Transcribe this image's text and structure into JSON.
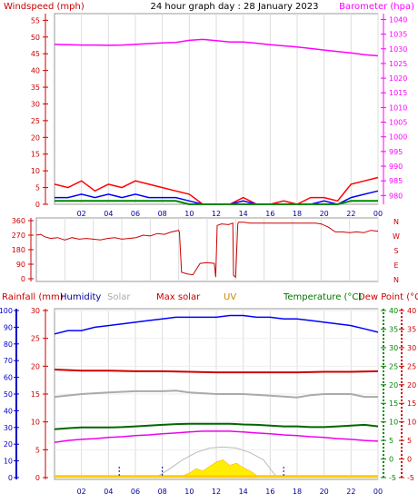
{
  "colors": {
    "wind_title": "#cc0000",
    "baro": "#ff00ff",
    "axis_red": "#cc0000",
    "rain": "#cc0000",
    "humidity": "#000099",
    "solar": "#aaaaaa",
    "maxsolar": "#cc0000",
    "uv": "#cc8800",
    "temp": "#007700",
    "dew": "#cc0000",
    "winddir": "#cc0000",
    "hum_axis": "#0000cc",
    "temp_axis": "#008800"
  },
  "chart_data": [
    {
      "type": "line",
      "title": "24 hour graph day : 28 January 2023",
      "left_axis_label": "Windspeed (mph)",
      "right_axis_label": "Barometer (hpa)",
      "x_ticks": [
        "02",
        "04",
        "06",
        "08",
        "10",
        "12",
        "14",
        "16",
        "18",
        "20",
        "22",
        "00"
      ],
      "y_left_ticks": [
        0,
        5,
        10,
        15,
        20,
        25,
        30,
        35,
        40,
        45,
        50,
        55
      ],
      "y_left_range": [
        0,
        57
      ],
      "y_right_ticks": [
        980,
        985,
        990,
        995,
        1000,
        1005,
        1010,
        1015,
        1020,
        1025,
        1030,
        1035,
        1040
      ],
      "y_right_range": [
        977,
        1042
      ],
      "series": [
        {
          "key": "barometer",
          "axis": "right",
          "x": [
            0,
            1,
            2,
            3,
            4,
            5,
            6,
            7,
            8,
            9,
            10,
            11,
            12,
            13,
            14,
            15,
            16,
            17,
            18,
            19,
            20,
            21,
            22,
            23,
            24
          ],
          "values": [
            1031.5,
            1031.4,
            1031.3,
            1031.3,
            1031.2,
            1031.3,
            1031.5,
            1031.8,
            1032.0,
            1032.2,
            1032.9,
            1033.2,
            1032.8,
            1032.3,
            1032.3,
            1031.9,
            1031.4,
            1031.0,
            1030.6,
            1030.1,
            1029.6,
            1029.1,
            1028.6,
            1028.0,
            1027.6
          ]
        },
        {
          "key": "gust",
          "axis": "left",
          "x": [
            0,
            1,
            2,
            3,
            4,
            5,
            6,
            7,
            8,
            9,
            10,
            11,
            12,
            13,
            14,
            15,
            16,
            17,
            18,
            19,
            20,
            21,
            22,
            23,
            24
          ],
          "values": [
            6,
            5,
            7,
            4,
            6,
            5,
            7,
            6,
            5,
            4,
            3,
            0,
            0,
            0,
            2,
            0,
            0,
            1,
            0,
            2,
            2,
            1,
            6,
            7,
            8
          ]
        },
        {
          "key": "avg_wind",
          "axis": "left",
          "x": [
            0,
            1,
            2,
            3,
            4,
            5,
            6,
            7,
            8,
            9,
            10,
            11,
            12,
            13,
            14,
            15,
            16,
            17,
            18,
            19,
            20,
            21,
            22,
            23,
            24
          ],
          "values": [
            2,
            2,
            3,
            2,
            3,
            2,
            3,
            2,
            2,
            2,
            1,
            0,
            0,
            0,
            1,
            0,
            0,
            0,
            0,
            0,
            1,
            0,
            2,
            3,
            4
          ]
        },
        {
          "key": "wind_low",
          "axis": "left",
          "x": [
            0,
            1,
            2,
            3,
            4,
            5,
            6,
            7,
            8,
            9,
            10,
            11,
            12,
            13,
            14,
            15,
            16,
            17,
            18,
            19,
            20,
            21,
            22,
            23,
            24
          ],
          "values": [
            1,
            1,
            1,
            1,
            1,
            1,
            1,
            1,
            1,
            1,
            0,
            0,
            0,
            0,
            0,
            0,
            0,
            0,
            0,
            0,
            0,
            0,
            1,
            1,
            1
          ]
        }
      ]
    },
    {
      "type": "line",
      "title": "",
      "x_ticks": [],
      "y_left_ticks": [
        0,
        90,
        180,
        270,
        360
      ],
      "y_left_range": [
        0,
        360
      ],
      "y_right_labels": [
        "N",
        "W",
        "S",
        "E",
        "N"
      ],
      "series": [
        {
          "key": "wind_direction",
          "x": [
            0,
            0.3,
            0.6,
            1,
            1.5,
            2,
            2.5,
            3,
            3.5,
            4,
            4.5,
            5,
            5.5,
            6,
            6.5,
            7,
            7.5,
            8,
            8.5,
            9,
            9.5,
            10,
            10.05,
            10.2,
            10.6,
            11,
            11.5,
            12,
            12.5,
            12.6,
            12.7,
            13,
            13.5,
            13.8,
            13.85,
            14,
            14.15,
            14.2,
            14.6,
            15,
            16,
            17,
            18,
            19,
            19.6,
            20,
            20.5,
            21,
            21.5,
            22,
            22.5,
            23,
            23.5,
            24
          ],
          "values": [
            270,
            275,
            260,
            250,
            255,
            240,
            255,
            245,
            250,
            245,
            240,
            250,
            255,
            245,
            250,
            255,
            270,
            265,
            280,
            275,
            290,
            300,
            285,
            40,
            30,
            25,
            95,
            100,
            95,
            10,
            330,
            340,
            335,
            345,
            20,
            10,
            340,
            350,
            350,
            345,
            345,
            345,
            345,
            345,
            345,
            340,
            320,
            290,
            290,
            285,
            290,
            285,
            300,
            295
          ]
        }
      ]
    },
    {
      "type": "line",
      "title": "",
      "headers": [
        "Rainfall (mm)",
        "Humidity",
        "Solar",
        "Max solar",
        "UV",
        "Temperature (°C)",
        "Dew Point (°C)"
      ],
      "x_ticks": [
        "02",
        "04",
        "06",
        "08",
        "10",
        "12",
        "14",
        "16",
        "18",
        "20",
        "22",
        "00"
      ],
      "y_left_ticks": [
        0,
        5,
        10,
        15,
        20,
        25,
        30
      ],
      "y_left_range": [
        0,
        30
      ],
      "y_humidity_ticks": [
        0,
        10,
        20,
        30,
        40,
        50,
        60,
        70,
        80,
        90,
        100
      ],
      "y_humidity_range": [
        0,
        100
      ],
      "y_temp_ticks": [
        -5,
        0,
        5,
        10,
        15,
        20,
        25,
        30,
        35,
        40
      ],
      "y_temp_range": [
        -5,
        40
      ],
      "series": [
        {
          "key": "humidity",
          "axis": "humidity",
          "x": [
            0,
            1,
            2,
            3,
            4,
            5,
            6,
            7,
            8,
            9,
            10,
            11,
            12,
            13,
            14,
            15,
            16,
            17,
            18,
            19,
            20,
            21,
            22,
            23,
            24
          ],
          "values": [
            86,
            88,
            88,
            90,
            91,
            92,
            93,
            94,
            95,
            96,
            96,
            96,
            96,
            97,
            97,
            96,
            96,
            95,
            95,
            94,
            93,
            92,
            91,
            89,
            87
          ]
        },
        {
          "key": "dew_point",
          "axis": "temp",
          "x": [
            0,
            1,
            2,
            3,
            4,
            5,
            6,
            7,
            8,
            9,
            10,
            11,
            12,
            13,
            14,
            15,
            16,
            17,
            18,
            19,
            20,
            21,
            22,
            23,
            24
          ],
          "values": [
            4.5,
            5.0,
            5.3,
            5.5,
            5.8,
            6.0,
            6.3,
            6.5,
            6.8,
            7.0,
            7.3,
            7.5,
            7.5,
            7.5,
            7.3,
            7.0,
            6.8,
            6.5,
            6.3,
            6.0,
            5.8,
            5.5,
            5.3,
            5.0,
            4.8
          ]
        },
        {
          "key": "temperature",
          "axis": "temp",
          "x": [
            0,
            1,
            2,
            3,
            4,
            5,
            6,
            7,
            8,
            9,
            10,
            11,
            12,
            13,
            14,
            15,
            16,
            17,
            18,
            19,
            20,
            21,
            22,
            23,
            24
          ],
          "values": [
            8.0,
            8.3,
            8.5,
            8.5,
            8.5,
            8.6,
            8.8,
            9.0,
            9.2,
            9.4,
            9.5,
            9.5,
            9.5,
            9.5,
            9.3,
            9.2,
            9.0,
            8.8,
            8.8,
            8.6,
            8.6,
            8.8,
            9.0,
            9.2,
            8.8
          ]
        },
        {
          "key": "solar",
          "axis": "left",
          "x": [
            0,
            2,
            4,
            6,
            7,
            8,
            9,
            10,
            12,
            14,
            16,
            18,
            19,
            20,
            21,
            22,
            23,
            24
          ],
          "values": [
            14.5,
            15.0,
            15.3,
            15.5,
            15.5,
            15.5,
            15.6,
            15.3,
            15.0,
            15.0,
            14.7,
            14.4,
            14.8,
            15.0,
            15.0,
            15.0,
            14.5,
            14.5
          ]
        },
        {
          "key": "max_solar",
          "axis": "left",
          "x": [
            0,
            2,
            4,
            6,
            8,
            10,
            12,
            14,
            16,
            18,
            20,
            22,
            24
          ],
          "values": [
            19.4,
            19.2,
            19.2,
            19.1,
            19.1,
            19.0,
            18.9,
            18.9,
            18.9,
            18.9,
            19.0,
            19.0,
            19.1
          ]
        },
        {
          "key": "solar_radiation_curve",
          "axis": "left",
          "x": [
            7.5,
            8.5,
            9.5,
            10.5,
            11.5,
            12.5,
            13.5,
            14.5,
            15.5,
            16.5
          ],
          "values": [
            0,
            1.5,
            3.2,
            4.5,
            5.3,
            5.5,
            5.3,
            4.5,
            3.2,
            0
          ]
        },
        {
          "key": "uv_index",
          "axis": "left",
          "x": [
            9.5,
            10,
            10.5,
            11,
            11.5,
            12,
            12.5,
            13,
            13.5,
            14,
            14.5,
            15
          ],
          "values": [
            0.3,
            0.8,
            1.6,
            1.2,
            2.0,
            2.8,
            3.2,
            2.2,
            2.6,
            1.8,
            1.2,
            0.4
          ]
        },
        {
          "key": "rainfall",
          "axis": "left",
          "x": [
            0,
            24
          ],
          "values": [
            0.2,
            0.2
          ]
        }
      ]
    }
  ]
}
